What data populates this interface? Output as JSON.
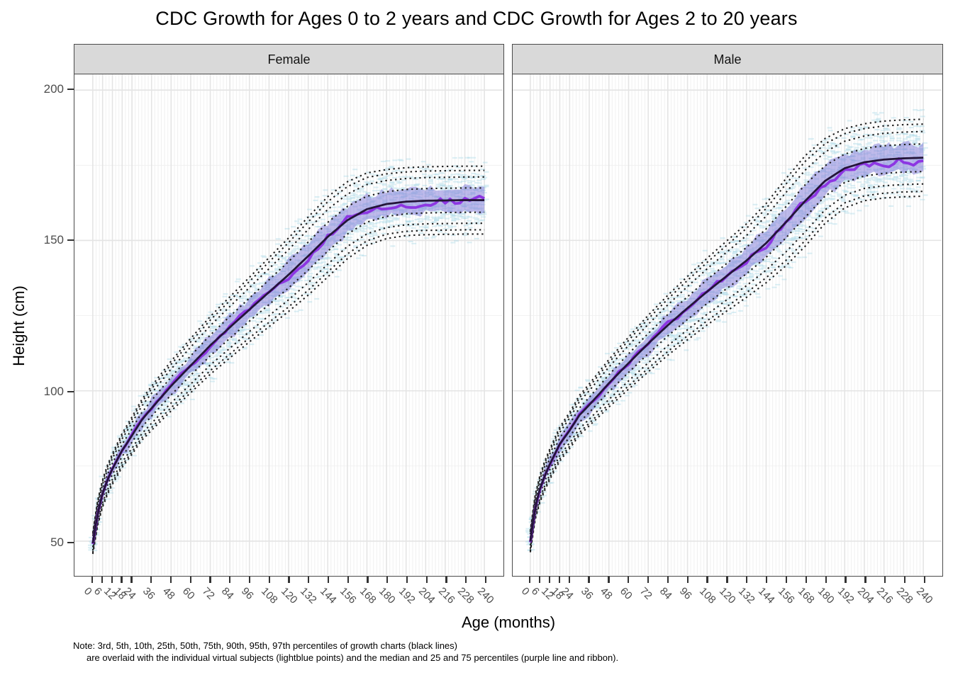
{
  "title": "CDC Growth for Ages 0 to 2 years and CDC Growth for Ages 2 to 20 years",
  "x_axis": {
    "label": "Age (months)",
    "ticks": [
      0,
      6,
      12,
      18,
      24,
      36,
      48,
      60,
      72,
      84,
      96,
      108,
      120,
      132,
      144,
      156,
      168,
      180,
      192,
      204,
      216,
      228,
      240
    ],
    "range": [
      0,
      240
    ]
  },
  "y_axis": {
    "label": "Height (cm)",
    "ticks": [
      200,
      150,
      100,
      50
    ],
    "range": [
      39,
      205
    ]
  },
  "note": {
    "line1": "Note: 3rd, 5th, 10th, 25th, 50th, 75th, 90th, 95th, 97th percentiles of growth charts (black lines)",
    "line2": "are overlaid with the individual virtual subjects (lightblue points) and the median and 25 and 75 percentiles (purple line and ribbon)."
  },
  "colors": {
    "percentile_dots": "#1f1f1f",
    "cdc_median_line": "#241539",
    "subject_median_line": "#8a2be2",
    "ribbon_25_75": "#7e76d8",
    "subject_points": "#a9d8e6",
    "strip_bg": "#d9d9d9",
    "panel_border": "#4a4a4a",
    "grid_major": "#e4e4e4",
    "grid_minor": "#f0f0f0",
    "tick_text": "#4d4d4d"
  },
  "chart_data": [
    {
      "type": "line",
      "facet": "Female",
      "x_months": [
        0,
        3,
        6,
        9,
        12,
        18,
        24,
        30,
        36,
        48,
        60,
        72,
        84,
        96,
        108,
        120,
        132,
        144,
        156,
        168,
        180,
        192,
        204,
        216,
        228,
        240
      ],
      "median_p50_cm": [
        49.3,
        59.4,
        65.9,
        70.4,
        74.0,
        80.2,
        85.1,
        90.3,
        94.2,
        101.6,
        108.4,
        115.1,
        121.1,
        127.0,
        132.8,
        138.6,
        144.8,
        151.2,
        156.7,
        160.4,
        162.1,
        162.9,
        163.2,
        163.3,
        163.4,
        163.4
      ],
      "sd_cm": [
        1.9,
        2.2,
        2.4,
        2.6,
        2.7,
        3.0,
        3.3,
        3.6,
        3.9,
        4.4,
        4.8,
        5.1,
        5.4,
        5.7,
        6.1,
        6.5,
        6.9,
        7.1,
        6.8,
        6.4,
        6.1,
        6.0,
        6.0,
        6.0,
        6.0,
        6.0
      ],
      "percentile_z": {
        "p3": -1.881,
        "p5": -1.645,
        "p10": -1.282,
        "p25": -0.674,
        "p50": 0,
        "p75": 0.674,
        "p90": 1.282,
        "p95": 1.645,
        "p97": 1.881
      },
      "adult_median_cm": 163.4
    },
    {
      "type": "line",
      "facet": "Male",
      "x_months": [
        0,
        3,
        6,
        9,
        12,
        18,
        24,
        30,
        36,
        48,
        60,
        72,
        84,
        96,
        108,
        120,
        132,
        144,
        156,
        168,
        180,
        192,
        204,
        216,
        228,
        240
      ],
      "median_p50_cm": [
        49.9,
        61.4,
        67.6,
        72.0,
        75.7,
        82.3,
        86.8,
        91.9,
        95.3,
        102.5,
        109.2,
        115.7,
        121.8,
        127.5,
        133.0,
        138.2,
        143.3,
        149.1,
        156.0,
        163.2,
        169.8,
        174.0,
        176.0,
        176.9,
        177.3,
        177.5
      ],
      "sd_cm": [
        1.9,
        2.2,
        2.4,
        2.6,
        2.7,
        3.0,
        3.2,
        3.5,
        3.7,
        4.2,
        4.6,
        5.0,
        5.3,
        5.6,
        5.9,
        6.2,
        6.5,
        7.0,
        7.7,
        8.0,
        7.5,
        7.0,
        6.8,
        6.8,
        6.8,
        6.8
      ],
      "percentile_z": {
        "p3": -1.881,
        "p5": -1.645,
        "p10": -1.282,
        "p25": -0.674,
        "p50": 0,
        "p75": 0.674,
        "p90": 1.282,
        "p95": 1.645,
        "p97": 1.881
      },
      "adult_median_cm": 177.5
    }
  ]
}
